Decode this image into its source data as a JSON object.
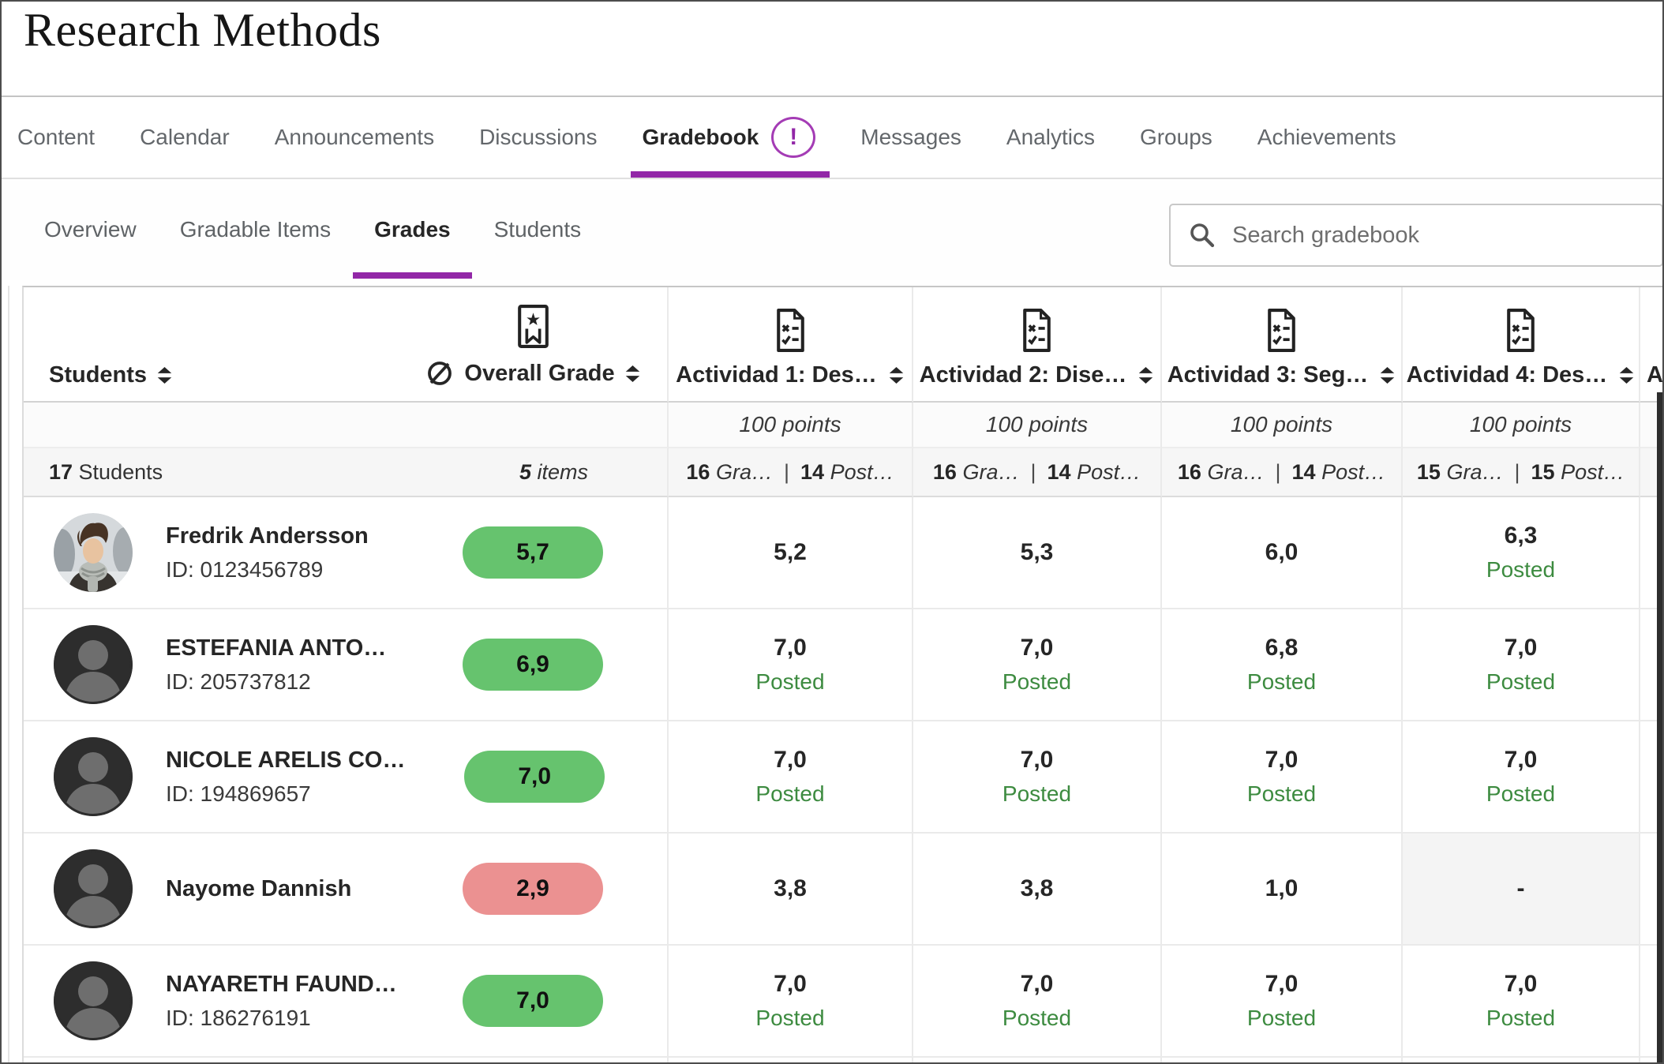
{
  "page": {
    "title": "Research Methods"
  },
  "nav": {
    "tabs": [
      {
        "label": "Content"
      },
      {
        "label": "Calendar"
      },
      {
        "label": "Announcements"
      },
      {
        "label": "Discussions"
      },
      {
        "label": "Gradebook",
        "active": true,
        "badge": "!"
      },
      {
        "label": "Messages"
      },
      {
        "label": "Analytics"
      },
      {
        "label": "Groups"
      },
      {
        "label": "Achievements"
      }
    ]
  },
  "subnav": {
    "tabs": [
      {
        "label": "Overview"
      },
      {
        "label": "Gradable Items"
      },
      {
        "label": "Grades",
        "active": true
      },
      {
        "label": "Students"
      }
    ]
  },
  "search": {
    "placeholder": "Search gradebook"
  },
  "gradebook": {
    "students_header": "Students",
    "overall_header": "Overall Grade",
    "summary": {
      "students_num": "17",
      "students_label": "Students",
      "items_num": "5",
      "items_label": "items"
    },
    "columns": [
      {
        "label": "Actividad 1: Des…",
        "points": "100 points",
        "graded_num": "16",
        "graded_label": "Gra…",
        "posted_num": "14",
        "posted_label": "Post…"
      },
      {
        "label": "Actividad 2: Dise…",
        "points": "100 points",
        "graded_num": "16",
        "graded_label": "Gra…",
        "posted_num": "14",
        "posted_label": "Post…"
      },
      {
        "label": "Actividad 3: Seg…",
        "points": "100 points",
        "graded_num": "16",
        "graded_label": "Gra…",
        "posted_num": "14",
        "posted_label": "Post…"
      },
      {
        "label": "Actividad 4: Des…",
        "points": "100 points",
        "graded_num": "15",
        "graded_label": "Gra…",
        "posted_num": "15",
        "posted_label": "Post…"
      }
    ],
    "partial_column_label": "A",
    "posted_label": "Posted",
    "rows": [
      {
        "name": "Fredrik Andersson",
        "id": "ID: 0123456789",
        "overall": "5,7",
        "overall_color": "green",
        "avatar": "photo",
        "grades": [
          {
            "value": "5,2"
          },
          {
            "value": "5,3"
          },
          {
            "value": "6,0"
          },
          {
            "value": "6,3",
            "posted": true
          }
        ]
      },
      {
        "name": "ESTEFANIA ANTO…",
        "id": "ID: 205737812",
        "overall": "6,9",
        "overall_color": "green",
        "avatar": "silhouette",
        "grades": [
          {
            "value": "7,0",
            "posted": true
          },
          {
            "value": "7,0",
            "posted": true
          },
          {
            "value": "6,8",
            "posted": true
          },
          {
            "value": "7,0",
            "posted": true
          }
        ]
      },
      {
        "name": "NICOLE ARELIS CO…",
        "id": "ID: 194869657",
        "overall": "7,0",
        "overall_color": "green",
        "avatar": "silhouette",
        "grades": [
          {
            "value": "7,0",
            "posted": true
          },
          {
            "value": "7,0",
            "posted": true
          },
          {
            "value": "7,0",
            "posted": true
          },
          {
            "value": "7,0",
            "posted": true
          }
        ]
      },
      {
        "name": "Nayome Dannish",
        "id": "",
        "overall": "2,9",
        "overall_color": "red",
        "avatar": "silhouette",
        "grades": [
          {
            "value": "3,8"
          },
          {
            "value": "3,8"
          },
          {
            "value": "1,0"
          },
          {
            "value": "-",
            "muted": true
          }
        ]
      },
      {
        "name": "NAYARETH FAUND…",
        "id": "ID: 186276191",
        "overall": "7,0",
        "overall_color": "green",
        "avatar": "silhouette",
        "grades": [
          {
            "value": "7,0",
            "posted": true
          },
          {
            "value": "7,0",
            "posted": true
          },
          {
            "value": "7,0",
            "posted": true
          },
          {
            "value": "7,0",
            "posted": true
          }
        ]
      }
    ]
  },
  "colors": {
    "accent_purple": "#9227a7",
    "pill_green": "#66c36e",
    "pill_red": "#eb9191",
    "posted_green": "#3d8b40"
  }
}
